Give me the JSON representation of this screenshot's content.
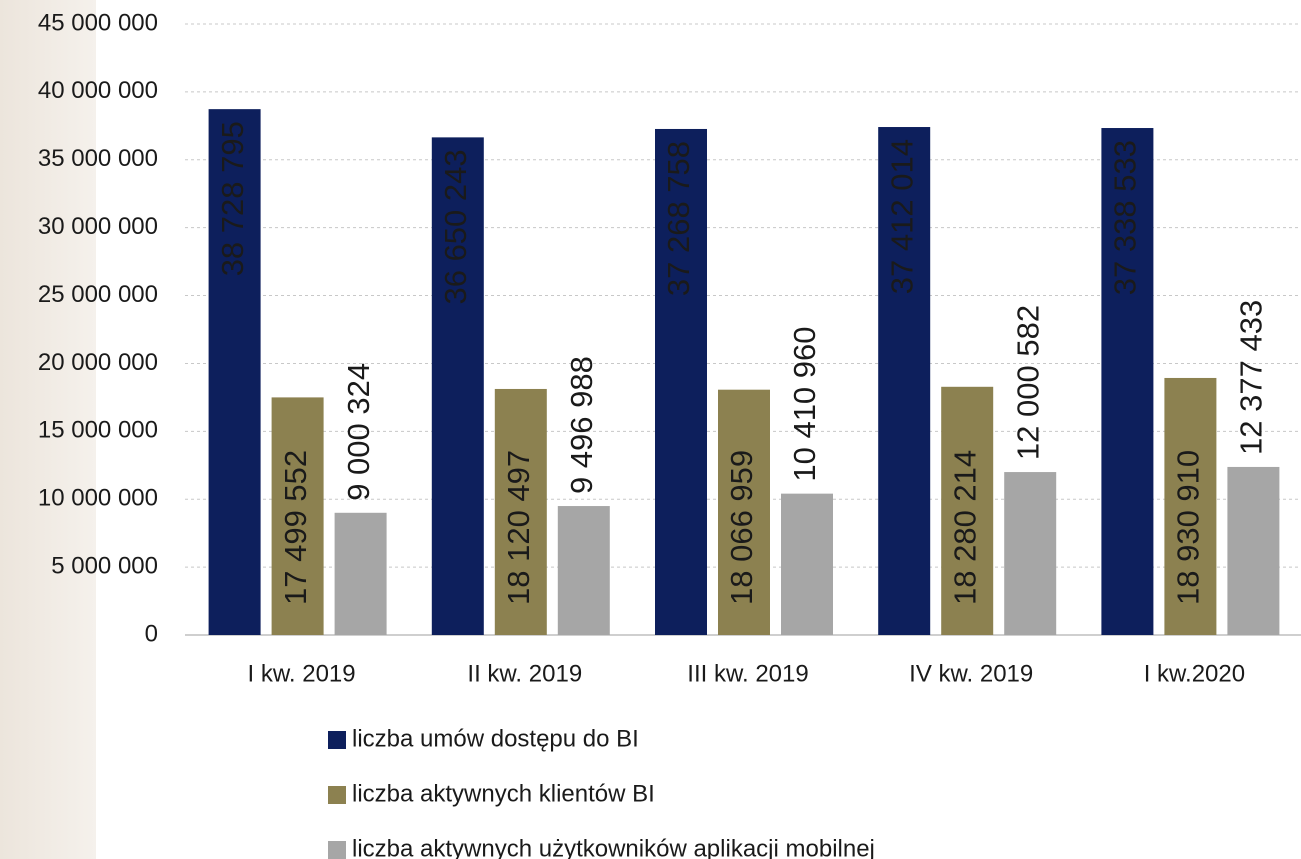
{
  "chart_data": {
    "type": "bar",
    "categories": [
      "I kw. 2019",
      "II kw. 2019",
      "III kw. 2019",
      "IV kw. 2019",
      "I kw.2020"
    ],
    "series": [
      {
        "name": "liczba umów dostępu do BI",
        "color": "#0d1f5c",
        "values": [
          38728795,
          36650243,
          37268758,
          37412014,
          37338533
        ],
        "value_labels": [
          "38 728 795",
          "36 650 243",
          "37 268 758",
          "37 412 014",
          "37 338 533"
        ]
      },
      {
        "name": "liczba aktywnych klientów BI",
        "color": "#8c8150",
        "values": [
          17499552,
          18120497,
          18066959,
          18280214,
          18930910
        ],
        "value_labels": [
          "17 499 552",
          "18 120 497",
          "18 066 959",
          "18 280 214",
          "18 930 910"
        ]
      },
      {
        "name": "liczba aktywnych użytkowników aplikacji mobilnej",
        "color": "#a6a6a6",
        "values": [
          9000324,
          9496988,
          10410960,
          12000582,
          12377433
        ],
        "value_labels": [
          "9 000 324",
          "9 496 988",
          "10 410 960",
          "12 000 582",
          "12 377 433"
        ]
      }
    ],
    "ylim": [
      0,
      45000000
    ],
    "yticks": [
      0,
      {
        "value": 5000000,
        "label": "5 000 000"
      },
      {
        "value": 10000000,
        "label": "10 000 000"
      },
      {
        "value": 15000000,
        "label": "15 000 000"
      },
      {
        "value": 20000000,
        "label": "20 000 000"
      },
      {
        "value": 25000000,
        "label": "25 000 000"
      },
      {
        "value": 30000000,
        "label": "30 000 000"
      },
      {
        "value": 35000000,
        "label": "35 000 000"
      },
      {
        "value": 40000000,
        "label": "40 000 000"
      },
      {
        "value": 45000000,
        "label": "45 000 000"
      }
    ],
    "grid": true
  }
}
